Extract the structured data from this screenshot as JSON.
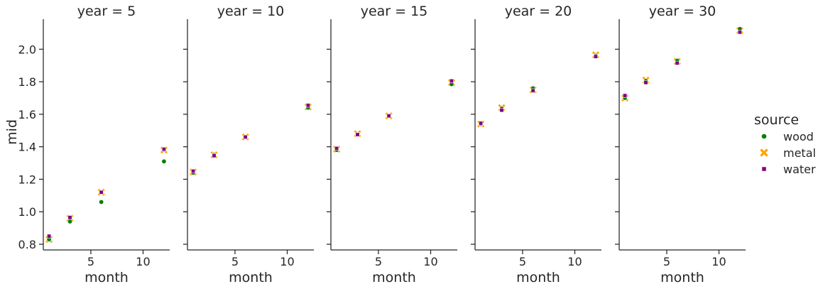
{
  "chart_data": {
    "type": "scatter",
    "facet_label": "year",
    "xlabel": "month",
    "ylabel": "mid",
    "xlim": [
      0.45,
      12.55
    ],
    "ylim": [
      0.765,
      2.185
    ],
    "xticks": [
      5,
      10
    ],
    "yticks": [
      0.8,
      1.0,
      1.2,
      1.4,
      1.6,
      1.8,
      2.0
    ],
    "ytick_labels": [
      "0.8",
      "1.0",
      "1.2",
      "1.4",
      "1.6",
      "1.8",
      "2.0"
    ],
    "legend": {
      "title": "source",
      "position": "right",
      "entries": [
        {
          "name": "wood",
          "color": "#008000",
          "marker": "circle"
        },
        {
          "name": "metal",
          "color": "#FFA500",
          "marker": "x"
        },
        {
          "name": "water",
          "color": "#800080",
          "marker": "square"
        }
      ]
    },
    "months": [
      1,
      3,
      6,
      12
    ],
    "panels": [
      {
        "title": "year = 5",
        "series": [
          {
            "name": "wood",
            "values": [
              0.83,
              0.94,
              1.06,
              1.31
            ]
          },
          {
            "name": "metal",
            "values": [
              0.83,
              0.96,
              1.12,
              1.38
            ]
          },
          {
            "name": "water",
            "values": [
              0.85,
              0.965,
              1.12,
              1.385
            ]
          }
        ]
      },
      {
        "title": "year = 10",
        "series": [
          {
            "name": "wood",
            "values": [
              1.24,
              1.35,
              1.46,
              1.64
            ]
          },
          {
            "name": "metal",
            "values": [
              1.245,
              1.35,
              1.46,
              1.645
            ]
          },
          {
            "name": "water",
            "values": [
              1.25,
              1.345,
              1.46,
              1.655
            ]
          }
        ]
      },
      {
        "title": "year = 15",
        "series": [
          {
            "name": "wood",
            "values": [
              1.38,
              1.475,
              1.59,
              1.785
            ]
          },
          {
            "name": "metal",
            "values": [
              1.385,
              1.48,
              1.59,
              1.795
            ]
          },
          {
            "name": "water",
            "values": [
              1.39,
              1.475,
              1.59,
              1.805
            ]
          }
        ]
      },
      {
        "title": "year = 20",
        "series": [
          {
            "name": "wood",
            "values": [
              1.54,
              1.635,
              1.76,
              1.96
            ]
          },
          {
            "name": "metal",
            "values": [
              1.54,
              1.64,
              1.75,
              1.965
            ]
          },
          {
            "name": "water",
            "values": [
              1.545,
              1.625,
              1.745,
              1.955
            ]
          }
        ]
      },
      {
        "title": "year = 30",
        "series": [
          {
            "name": "wood",
            "values": [
              1.7,
              1.805,
              1.93,
              2.125
            ]
          },
          {
            "name": "metal",
            "values": [
              1.7,
              1.81,
              1.925,
              2.115
            ]
          },
          {
            "name": "water",
            "values": [
              1.715,
              1.795,
              1.915,
              2.105
            ]
          }
        ]
      }
    ]
  }
}
